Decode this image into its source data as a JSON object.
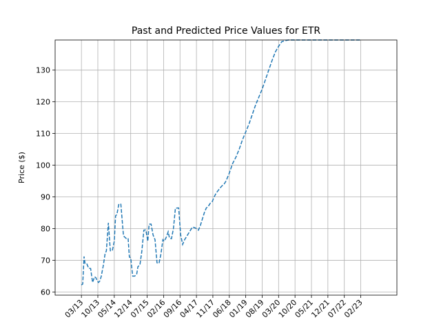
{
  "chart_data": {
    "type": "line",
    "title": "Past and Predicted Price Values for ETR",
    "xlabel": "",
    "ylabel": "Price ($)",
    "ylim": [
      59,
      139.5
    ],
    "xlim": [
      -0.04,
      0.48
    ],
    "grid": true,
    "x_ticks": [
      0,
      0.025,
      0.05,
      0.075,
      0.1,
      0.125,
      0.15,
      0.175,
      0.2,
      0.225,
      0.25,
      0.275,
      0.3,
      0.325,
      0.35,
      0.375,
      0.4,
      0.425
    ],
    "x_tick_labels": [
      "03/13",
      "10/13",
      "05/14",
      "12/14",
      "07/15",
      "02/16",
      "09/16",
      "04/17",
      "11/17",
      "06/18",
      "01/19",
      "08/19",
      "03/20",
      "10/20",
      "05/21",
      "12/21",
      "07/22",
      "02/23"
    ],
    "y_ticks": [
      60,
      70,
      80,
      90,
      100,
      110,
      120,
      130
    ],
    "y_tick_labels": [
      "60",
      "70",
      "80",
      "90",
      "100",
      "110",
      "120",
      "130"
    ],
    "series": [
      {
        "color": "#1f77b4",
        "style": "dashed",
        "x": [
          0,
          0.002,
          0.004,
          0.0055,
          0.008,
          0.011,
          0.014,
          0.017,
          0.02,
          0.022,
          0.024,
          0.026,
          0.028,
          0.03,
          0.033,
          0.036,
          0.038,
          0.041,
          0.044,
          0.047,
          0.05,
          0.052,
          0.054,
          0.057,
          0.06,
          0.064,
          0.068,
          0.071,
          0.073,
          0.075,
          0.078,
          0.081,
          0.084,
          0.086,
          0.089,
          0.092,
          0.095,
          0.098,
          0.101,
          0.103,
          0.106,
          0.109,
          0.112,
          0.115,
          0.118,
          0.121,
          0.124,
          0.126,
          0.129,
          0.132,
          0.134,
          0.137,
          0.14,
          0.143,
          0.146,
          0.148,
          0.151,
          0.154,
          0.157,
          0.16,
          0.163,
          0.166,
          0.169,
          0.172,
          0.175,
          0.178,
          0.181,
          0.184,
          0.187,
          0.19,
          0.193,
          0.196,
          0.199,
          0.202,
          0.205,
          0.208,
          0.211,
          0.214,
          0.217,
          0.22,
          0.225,
          0.23,
          0.235,
          0.24,
          0.245,
          0.25,
          0.255,
          0.26,
          0.265,
          0.27,
          0.275,
          0.28,
          0.285,
          0.29,
          0.295,
          0.3,
          0.305,
          0.31,
          0.315,
          0.32,
          0.325,
          0.33,
          0.335,
          0.34,
          0.345,
          0.35,
          0.355,
          0.36,
          0.365,
          0.37,
          0.375,
          0.38,
          0.385,
          0.39,
          0.395,
          0.4,
          0.405,
          0.41,
          0.415,
          0.42,
          0.425
        ],
        "y": [
          62.2,
          62.5,
          71.2,
          69,
          69,
          67.5,
          67.4,
          63,
          64.8,
          64.5,
          63.5,
          63,
          63.5,
          64.8,
          68,
          72,
          73,
          81.8,
          73,
          73,
          76,
          84,
          84.5,
          87.8,
          87.7,
          77.7,
          76.9,
          77,
          71,
          70.8,
          65,
          65,
          65.5,
          68,
          68.5,
          73,
          79.5,
          79.6,
          76,
          81.4,
          81.4,
          78,
          76.5,
          69.2,
          69,
          72,
          76.5,
          76,
          77.2,
          79,
          77,
          76.8,
          80,
          86.4,
          86.5,
          86.5,
          78,
          75,
          76.5,
          77.5,
          78.5,
          79.5,
          80.5,
          80.3,
          80,
          79.5,
          81,
          83,
          85,
          86.5,
          87,
          88,
          88.5,
          90,
          91.2,
          92,
          92.8,
          93.5,
          94,
          95,
          97.5,
          100.5,
          102.5,
          105,
          108,
          110.5,
          113,
          116,
          119,
          121.5,
          124,
          127,
          130,
          133,
          135.7,
          137.5,
          139,
          139.3,
          139.5,
          139.5,
          139.5,
          139.5,
          139.5,
          139.5,
          139.5,
          139.5,
          139.5,
          139.5,
          139.5,
          139.5,
          139.5,
          139.5,
          139.5,
          139.5,
          139.5,
          139.5,
          139.5,
          139.5,
          139.5,
          139.5,
          139.5
        ]
      }
    ]
  }
}
